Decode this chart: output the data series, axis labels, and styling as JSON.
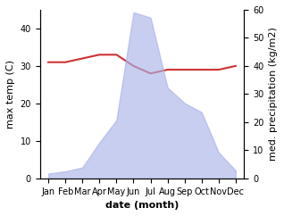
{
  "months": [
    "Jan",
    "Feb",
    "Mar",
    "Apr",
    "May",
    "Jun",
    "Jul",
    "Aug",
    "Sep",
    "Oct",
    "Nov",
    "Dec"
  ],
  "month_indices": [
    1,
    2,
    3,
    4,
    5,
    6,
    7,
    8,
    9,
    10,
    11,
    12
  ],
  "max_temp": [
    31,
    31,
    32,
    33,
    33,
    30,
    28,
    29,
    29,
    29,
    29,
    30
  ],
  "precipitation": [
    18,
    27,
    42,
    138,
    225,
    640,
    620,
    350,
    290,
    255,
    100,
    30
  ],
  "temp_ylim": [
    0,
    45
  ],
  "precip_ylim": [
    0,
    650
  ],
  "temp_color": "#cc3333",
  "precip_fill_color": "#aab4e8",
  "precip_fill_alpha": 0.65,
  "xlabel": "date (month)",
  "ylabel_left": "max temp (C)",
  "ylabel_right": "med. precipitation (kg/m2)",
  "bg_color": "#ffffff",
  "tick_fontsize": 7,
  "label_fontsize": 8,
  "ylabel_fontsize": 8,
  "left_yticks": [
    0,
    10,
    20,
    30,
    40
  ],
  "right_yticks": [
    0,
    10,
    20,
    30,
    40,
    50,
    60
  ],
  "right_ytick_labels": [
    "0",
    "10",
    "20",
    "30",
    "40",
    "50",
    "60"
  ],
  "precip_scale_max": 60
}
